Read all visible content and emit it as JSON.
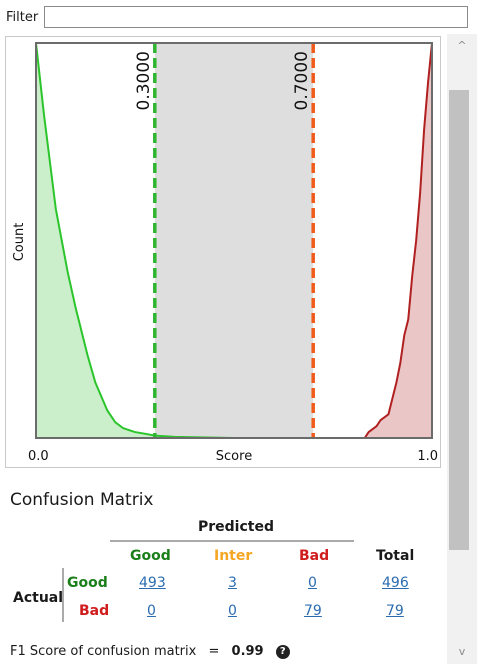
{
  "filter": {
    "label": "Filter",
    "value": "",
    "placeholder": ""
  },
  "chart_data": {
    "type": "area",
    "xlabel": "Score",
    "ylabel": "Count",
    "xlim": [
      0.0,
      1.0
    ],
    "tick_labels": [
      "0.0",
      "1.0"
    ],
    "thresholds": [
      {
        "value": 0.3,
        "label": "0.3000",
        "color": "#2fb52f"
      },
      {
        "value": 0.7,
        "label": "0.7000",
        "color": "#f05a1a"
      }
    ],
    "shaded_range": [
      0.3,
      0.7
    ],
    "series": [
      {
        "name": "Good",
        "color": "#2bc52b",
        "fill": "#cbeecb",
        "x": [
          0.0,
          0.02,
          0.05,
          0.08,
          0.1,
          0.13,
          0.15,
          0.18,
          0.2,
          0.22,
          0.25,
          0.28,
          0.3,
          0.35,
          0.4,
          0.45,
          0.5,
          0.6,
          0.7,
          0.8,
          0.9,
          1.0
        ],
        "y": [
          1.0,
          0.82,
          0.58,
          0.42,
          0.33,
          0.21,
          0.14,
          0.07,
          0.04,
          0.025,
          0.015,
          0.01,
          0.006,
          0.003,
          0.002,
          0.001,
          0.0,
          0.0,
          0.0,
          0.0,
          0.0,
          0.0
        ]
      },
      {
        "name": "Bad",
        "color": "#b02020",
        "fill": "#ebc6c6",
        "x": [
          0.0,
          0.7,
          0.83,
          0.84,
          0.86,
          0.87,
          0.89,
          0.9,
          0.91,
          0.92,
          0.93,
          0.94,
          0.95,
          0.96,
          0.97,
          0.98,
          0.99,
          1.0
        ],
        "y": [
          0.0,
          0.0,
          0.0,
          0.015,
          0.03,
          0.045,
          0.06,
          0.1,
          0.14,
          0.19,
          0.26,
          0.3,
          0.41,
          0.5,
          0.62,
          0.78,
          0.9,
          1.0
        ]
      }
    ]
  },
  "confusion_matrix": {
    "title": "Confusion Matrix",
    "predicted_header": "Predicted",
    "actual_header": "Actual",
    "total_header": "Total",
    "col_headers": [
      {
        "label": "Good",
        "color": "#1a7f1a"
      },
      {
        "label": "Inter",
        "color": "#f5a623"
      },
      {
        "label": "Bad",
        "color": "#d01c1c"
      }
    ],
    "rows": [
      {
        "label": "Good",
        "color": "#1a7f1a",
        "values": [
          "493",
          "3",
          "0"
        ],
        "total": "496"
      },
      {
        "label": "Bad",
        "color": "#d01c1c",
        "values": [
          "0",
          "0",
          "79"
        ],
        "total": "79"
      }
    ]
  },
  "f1": {
    "label": "F1 Score of confusion matrix",
    "equals": "=",
    "value": "0.99",
    "help_glyph": "?"
  },
  "scrollbar": {
    "up_arrow": "^",
    "down_arrow": "v"
  }
}
